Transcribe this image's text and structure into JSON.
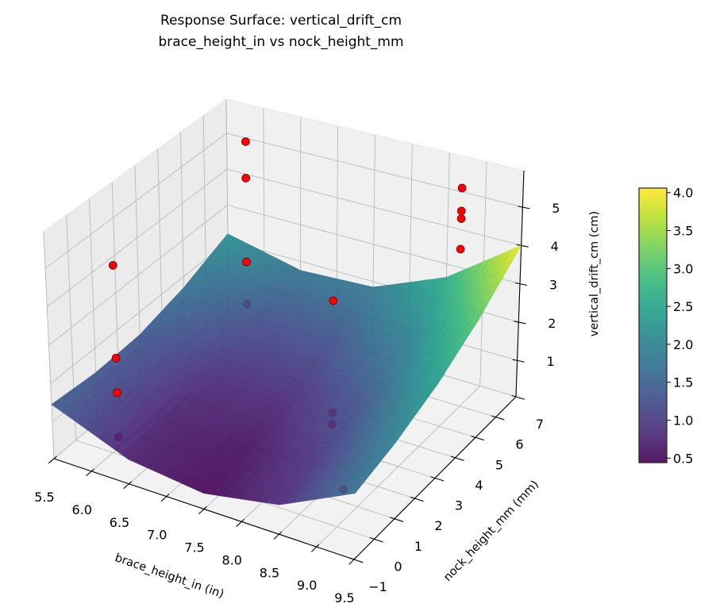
{
  "chart_data": {
    "type": "surface",
    "title_lines": [
      "Response Surface: vertical_drift_cm",
      "brace_height_in vs nock_height_mm"
    ],
    "xlabel": "brace_height_in (in)",
    "ylabel": "nock_height_mm (mm)",
    "zlabel": "vertical_drift_cm (cm)",
    "xlim": [
      5.5,
      9.5
    ],
    "ylim": [
      -1,
      7
    ],
    "zlim": [
      0.05,
      5.95
    ],
    "x_ticks": [
      "5.5",
      "6.0",
      "6.5",
      "7.0",
      "7.5",
      "8.0",
      "8.5",
      "9.0",
      "9.5"
    ],
    "y_ticks": [
      "−1",
      "0",
      "1",
      "2",
      "3",
      "4",
      "5",
      "6",
      "7"
    ],
    "z_ticks": [
      "1",
      "2",
      "3",
      "4",
      "5"
    ],
    "grid": true,
    "colormap": "viridis",
    "surface": {
      "x": [
        5.5,
        6.5,
        7.5,
        8.5,
        9.5
      ],
      "y": [
        -1,
        1,
        3,
        5,
        7
      ],
      "z": [
        [
          1.46,
          0.68,
          0.45,
          0.79,
          1.69
        ],
        [
          1.35,
          0.67,
          0.54,
          0.98,
          1.98
        ],
        [
          1.4,
          0.82,
          0.79,
          1.33,
          2.43
        ],
        [
          1.7,
          1.2,
          1.25,
          1.9,
          3.1
        ],
        [
          2.2,
          1.75,
          1.85,
          2.65,
          4.0
        ]
      ]
    },
    "points": [
      {
        "x": 5.9,
        "y": 0.6,
        "z": 0.1
      },
      {
        "x": 5.9,
        "y": 0.6,
        "z": 1.26
      },
      {
        "x": 5.9,
        "y": 0.6,
        "z": 2.17
      },
      {
        "x": 5.9,
        "y": 0.6,
        "z": 4.6
      },
      {
        "x": 6.0,
        "y": 6.2,
        "z": 0.95
      },
      {
        "x": 6.0,
        "y": 6.2,
        "z": 2.1
      },
      {
        "x": 6.0,
        "y": 6.2,
        "z": 4.4
      },
      {
        "x": 6.0,
        "y": 6.2,
        "z": 5.4
      },
      {
        "x": 8.9,
        "y": 6.2,
        "z": 4.0
      },
      {
        "x": 8.9,
        "y": 6.2,
        "z": 4.8
      },
      {
        "x": 8.9,
        "y": 6.2,
        "z": 5.0
      },
      {
        "x": 8.9,
        "y": 6.2,
        "z": 5.6
      },
      {
        "x": 8.1,
        "y": 3.0,
        "z": 0.6
      },
      {
        "x": 8.1,
        "y": 3.0,
        "z": 0.9
      },
      {
        "x": 8.1,
        "y": 3.0,
        "z": 3.8
      },
      {
        "x": 8.7,
        "y": 1.4,
        "z": 0.1
      }
    ],
    "point_color": "#ff0000",
    "colorbar": {
      "range": [
        0.44,
        4.06
      ],
      "ticks": [
        "0.5",
        "1.0",
        "1.5",
        "2.0",
        "2.5",
        "3.0",
        "3.5",
        "4.0"
      ]
    }
  }
}
